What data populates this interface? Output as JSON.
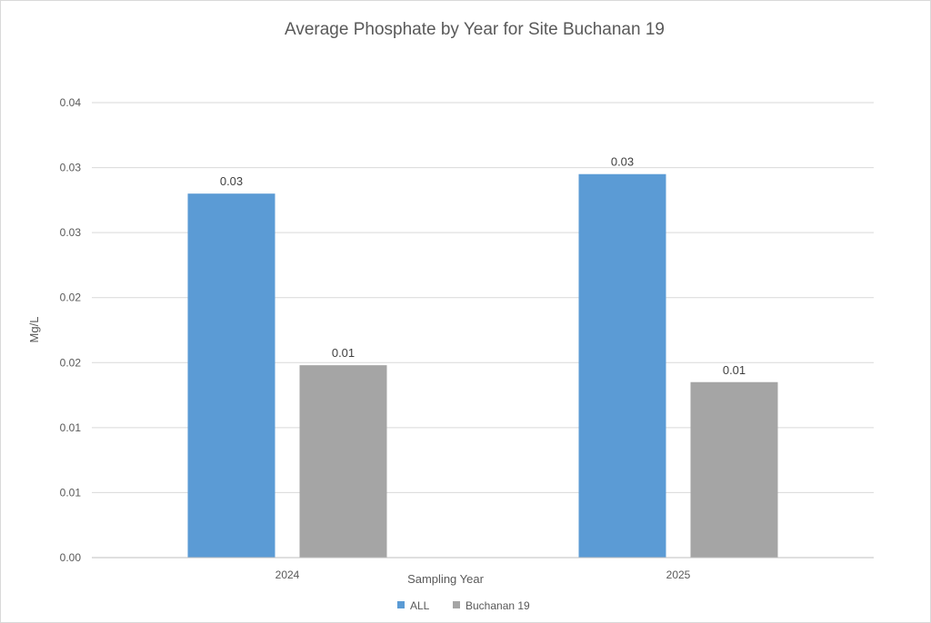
{
  "chart_data": {
    "type": "bar",
    "title": "Average Phosphate by Year for Site Buchanan 19",
    "xlabel": "Sampling Year",
    "ylabel": "Mg/L",
    "categories": [
      "2024",
      "2025"
    ],
    "series": [
      {
        "name": "ALL",
        "color": "#5b9bd5",
        "values": [
          0.028,
          0.0295
        ],
        "labels": [
          "0.03",
          "0.03"
        ]
      },
      {
        "name": "Buchanan 19",
        "color": "#a5a5a5",
        "values": [
          0.0148,
          0.0135
        ],
        "labels": [
          "0.01",
          "0.01"
        ]
      }
    ],
    "ylim": [
      0,
      0.035
    ],
    "yticks": [
      0,
      0.005,
      0.01,
      0.015,
      0.02,
      0.025,
      0.03,
      0.035
    ],
    "ytick_labels": [
      "0.00",
      "0.01",
      "0.01",
      "0.02",
      "0.02",
      "0.03",
      "0.03",
      "0.04"
    ],
    "grid": true,
    "legend_position": "bottom"
  }
}
